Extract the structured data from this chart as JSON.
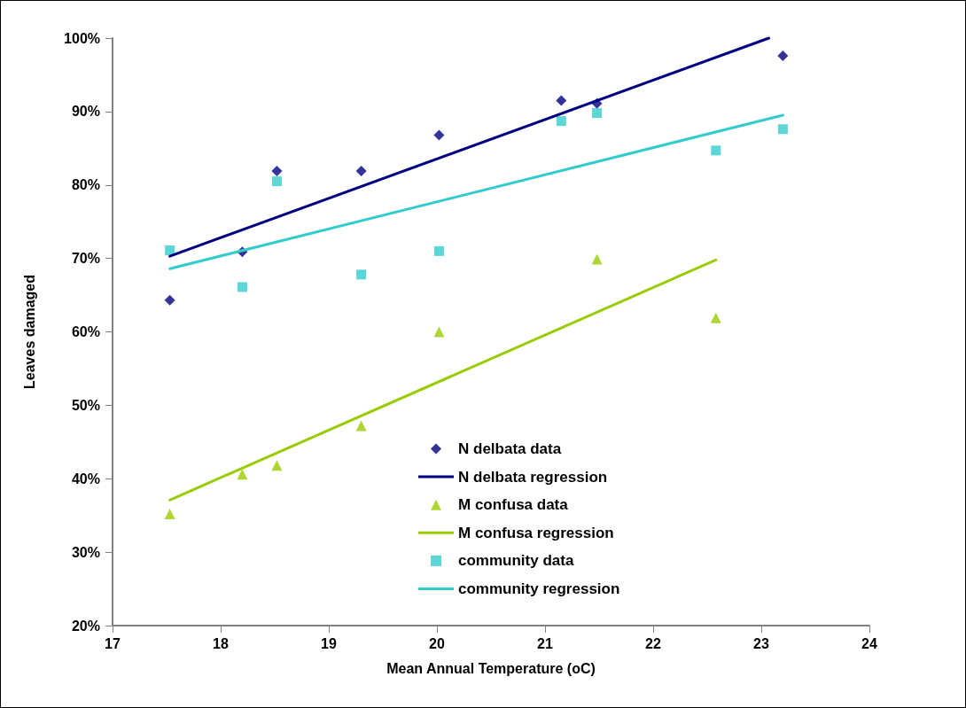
{
  "chart_data": {
    "type": "scatter",
    "xlabel": "Mean Annual Temperature (oC)",
    "ylabel": "Leaves damaged",
    "xlim": [
      17,
      24
    ],
    "xticks": [
      17,
      18,
      19,
      20,
      21,
      22,
      23,
      24
    ],
    "ylim": [
      20,
      100
    ],
    "yticks": [
      {
        "value": 20,
        "label": "20%"
      },
      {
        "value": 30,
        "label": "30%"
      },
      {
        "value": 40,
        "label": "40%"
      },
      {
        "value": 50,
        "label": "50%"
      },
      {
        "value": 60,
        "label": "60%"
      },
      {
        "value": 70,
        "label": "70%"
      },
      {
        "value": 80,
        "label": "80%"
      },
      {
        "value": 90,
        "label": "90%"
      },
      {
        "value": 100,
        "label": "100%"
      }
    ],
    "grid": false,
    "legend": "bottom",
    "series": [
      {
        "name": "N delbata data",
        "marker": "diamond",
        "color": "#000080",
        "x": [
          17.53,
          18.2,
          18.52,
          19.3,
          20.02,
          21.15,
          21.48,
          23.2
        ],
        "values": [
          64.3,
          70.9,
          81.9,
          81.9,
          86.8,
          91.5,
          91.1,
          97.6
        ]
      },
      {
        "name": "N delbata regression",
        "type": "line",
        "marker": "none",
        "color": "#000080",
        "x": [
          17.53,
          23.07
        ],
        "values": [
          70.3,
          100
        ]
      },
      {
        "name": "M confusa data",
        "marker": "triangle",
        "color": "#99cc00",
        "x": [
          17.53,
          18.2,
          18.52,
          19.3,
          20.02,
          21.48,
          22.58
        ],
        "values": [
          35.2,
          40.6,
          41.8,
          47.2,
          60.0,
          69.9,
          61.9
        ]
      },
      {
        "name": "M confusa regression",
        "type": "line",
        "marker": "none",
        "color": "#99cc00",
        "x": [
          17.53,
          22.58
        ],
        "values": [
          37.1,
          69.8
        ]
      },
      {
        "name": "community data",
        "marker": "square",
        "color": "#33cccc",
        "x": [
          17.53,
          18.2,
          18.52,
          19.3,
          20.02,
          21.15,
          21.48,
          22.58,
          23.2
        ],
        "values": [
          71.1,
          66.1,
          80.5,
          67.8,
          71.0,
          88.7,
          89.8,
          84.7,
          87.6
        ]
      },
      {
        "name": "community regression",
        "type": "line",
        "marker": "none",
        "color": "#33cccc",
        "x": [
          17.53,
          23.2
        ],
        "values": [
          68.6,
          89.5
        ]
      }
    ]
  }
}
